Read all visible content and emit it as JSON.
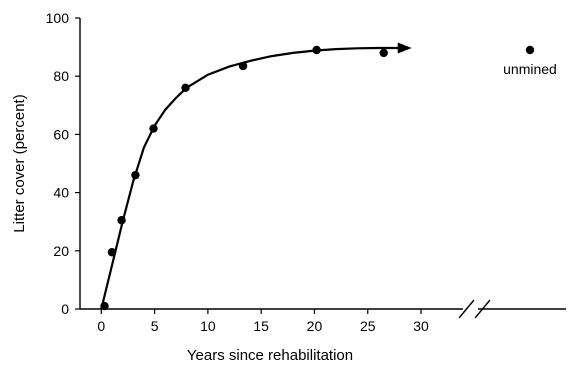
{
  "chart_data": {
    "type": "scatter",
    "xlabel": "Years since rehabilitation",
    "ylabel": "Litter cover (percent)",
    "xlim": [
      -2,
      33
    ],
    "ylim": [
      0,
      100
    ],
    "xticks": [
      0,
      5,
      10,
      15,
      20,
      25,
      30
    ],
    "yticks": [
      0,
      20,
      40,
      60,
      80,
      100
    ],
    "axis_break": true,
    "grid": false,
    "legend": "none",
    "series": [
      {
        "x": [
          0.3,
          1.0,
          1.9,
          3.2,
          4.9,
          7.9,
          13.3,
          20.2,
          26.5
        ],
        "y": [
          1,
          19.5,
          30.5,
          46,
          62,
          76,
          83.5,
          89,
          88
        ]
      }
    ],
    "fitted_curve": {
      "x": [
        0,
        1,
        2,
        3,
        4,
        5,
        6,
        7,
        8,
        10,
        12,
        14,
        16,
        18,
        20,
        22,
        24,
        26,
        28
      ],
      "y": [
        0,
        15,
        30,
        44,
        55.5,
        63,
        68.5,
        72.5,
        76,
        80.5,
        83.3,
        85.3,
        86.9,
        88,
        88.8,
        89.3,
        89.6,
        89.7,
        89.7
      ]
    },
    "unmined": {
      "label": "unmined",
      "y": 89
    }
  }
}
